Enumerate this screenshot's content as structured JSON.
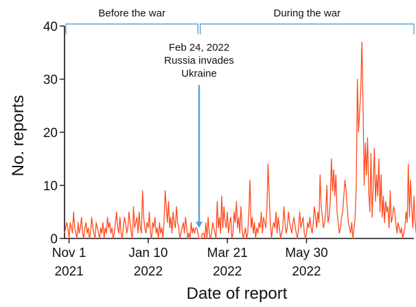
{
  "chart_data": {
    "type": "line",
    "xlabel": "Date of report",
    "ylabel": "No. reports",
    "ylim": [
      0,
      40
    ],
    "xlim": [
      "2021-10-28",
      "2022-09-02"
    ],
    "grid": false,
    "y_ticks": [
      0,
      10,
      20,
      30,
      40
    ],
    "x_ticks": [
      {
        "date": "2021-11-01",
        "label": "Nov 1",
        "year": "2021"
      },
      {
        "date": "2022-01-10",
        "label": "Jan 10",
        "year": "2022"
      },
      {
        "date": "2022-03-21",
        "label": "Mar 21",
        "year": "2022"
      },
      {
        "date": "2022-05-30",
        "label": "May 30",
        "year": "2022"
      }
    ],
    "periods": [
      {
        "label": "Before the war",
        "start": "2021-10-28",
        "end": "2022-02-23"
      },
      {
        "label": "During the war",
        "start": "2022-02-25",
        "end": "2022-09-02"
      }
    ],
    "annotation": {
      "date": "2022-02-24",
      "lines": [
        "Feb 24, 2022",
        "Russia invades",
        "Ukraine"
      ],
      "arrow_to_y": 2
    },
    "series": [
      {
        "color": "#ff4a1c",
        "start": "2021-10-28",
        "step_days": 1,
        "values": [
          1,
          2,
          3,
          2,
          0,
          3,
          2,
          1,
          5,
          2,
          1,
          0,
          3,
          1,
          2,
          4,
          1,
          0,
          2,
          3,
          1,
          2,
          0,
          1,
          4,
          2,
          1,
          0,
          3,
          2,
          1,
          0,
          2,
          1,
          3,
          0,
          2,
          1,
          4,
          2,
          3,
          1,
          2,
          0,
          1,
          3,
          5,
          2,
          1,
          4,
          1,
          0,
          2,
          4,
          3,
          1,
          2,
          5,
          3,
          1,
          0,
          6,
          2,
          3,
          4,
          1,
          5,
          2,
          1,
          9,
          4,
          2,
          1,
          3,
          2,
          5,
          1,
          0,
          3,
          2,
          4,
          1,
          2,
          0,
          3,
          1,
          2,
          0,
          3,
          9,
          6,
          3,
          7,
          2,
          4,
          1,
          5,
          3,
          2,
          6,
          3,
          2,
          0,
          1,
          2,
          3,
          1,
          4,
          2,
          0,
          1,
          0,
          3,
          1,
          2,
          1,
          2,
          2,
          1,
          0,
          0,
          0,
          1,
          1,
          0,
          3,
          0,
          4,
          1,
          0,
          1,
          3,
          2,
          1,
          0,
          7,
          2,
          4,
          1,
          8,
          2,
          6,
          3,
          2,
          5,
          1,
          3,
          4,
          0,
          1,
          5,
          3,
          7,
          2,
          4,
          1,
          6,
          2,
          0,
          1,
          2,
          0,
          1,
          5,
          11,
          2,
          4,
          1,
          3,
          0,
          2,
          1,
          3,
          2,
          5,
          1,
          4,
          3,
          2,
          6,
          14,
          8,
          3,
          0,
          2,
          3,
          2,
          5,
          1,
          4,
          2,
          0,
          1,
          2,
          6,
          3,
          1,
          2,
          5,
          3,
          2,
          1,
          3,
          4,
          2,
          1,
          0,
          2,
          5,
          2,
          3,
          4,
          1,
          0,
          1,
          3,
          2,
          4,
          2,
          1,
          3,
          6,
          4,
          2,
          5,
          3,
          12,
          6,
          4,
          2,
          3,
          5,
          10,
          3,
          4,
          7,
          15,
          9,
          13,
          8,
          12,
          5,
          3,
          1,
          2,
          4,
          5,
          8,
          11,
          9,
          6,
          3,
          2,
          1,
          3,
          0,
          2,
          4,
          10,
          30,
          20,
          24,
          28,
          37,
          25,
          10,
          18,
          12,
          19,
          9,
          5,
          16,
          4,
          10,
          17,
          7,
          12,
          8,
          15,
          5,
          12,
          4,
          8,
          3,
          7,
          5,
          6,
          2,
          9,
          3,
          4,
          6,
          5,
          3,
          1,
          3,
          2,
          1,
          2,
          0,
          1,
          2,
          5,
          3,
          14,
          4,
          11,
          6,
          2,
          8,
          3,
          1,
          2,
          9,
          4,
          2,
          4,
          3,
          1,
          2,
          9,
          4,
          21,
          18,
          7,
          15,
          19
        ]
      }
    ]
  }
}
